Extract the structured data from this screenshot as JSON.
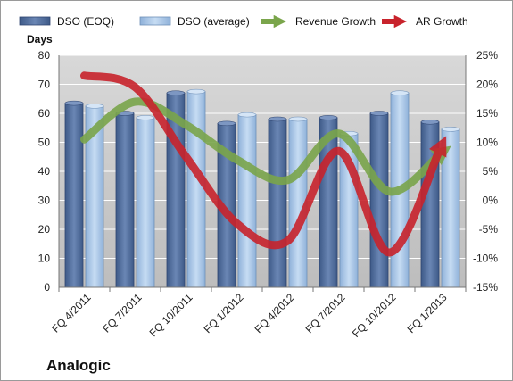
{
  "chart_data": {
    "type": "bar",
    "company": "Analogic",
    "y_left_title": "Days",
    "categories": [
      "FQ 4/2011",
      "FQ 7/2011",
      "FQ 10/2011",
      "FQ 1/2012",
      "FQ 4/2012",
      "FQ 7/2012",
      "FQ 10/2012",
      "FQ 1/2013"
    ],
    "series": [
      {
        "name": "DSO (EOQ)",
        "kind": "bar",
        "axis": "left",
        "color": "#4f6b99",
        "values": [
          63.5,
          60,
          67,
          56.5,
          58,
          58.5,
          60,
          57
        ]
      },
      {
        "name": "DSO (average)",
        "kind": "bar",
        "axis": "left",
        "color": "#a9c7e8",
        "values": [
          62.5,
          58.5,
          67.5,
          59.5,
          58,
          53,
          67,
          54.5
        ]
      },
      {
        "name": "Revenue Growth",
        "kind": "line",
        "axis": "right",
        "color": "#7aa54b",
        "values": [
          10.5,
          17,
          13,
          7,
          3.5,
          11.5,
          1.5,
          8
        ]
      },
      {
        "name": "AR Growth",
        "kind": "line",
        "axis": "right",
        "color": "#c8232c",
        "values": [
          21.5,
          19.5,
          7.5,
          -4,
          -7,
          8.5,
          -9,
          9
        ]
      }
    ],
    "y_left": {
      "min": 0,
      "max": 80,
      "step": 10,
      "tick_labels": [
        "0",
        "10",
        "20",
        "30",
        "40",
        "50",
        "60",
        "70",
        "80"
      ]
    },
    "y_right": {
      "min": -15,
      "max": 25,
      "step": 5,
      "tick_labels": [
        "-15%",
        "-10%",
        "-5%",
        "0%",
        "5%",
        "10%",
        "15%",
        "20%",
        "25%"
      ]
    },
    "grid": "horizontal",
    "legend_position": "top"
  }
}
